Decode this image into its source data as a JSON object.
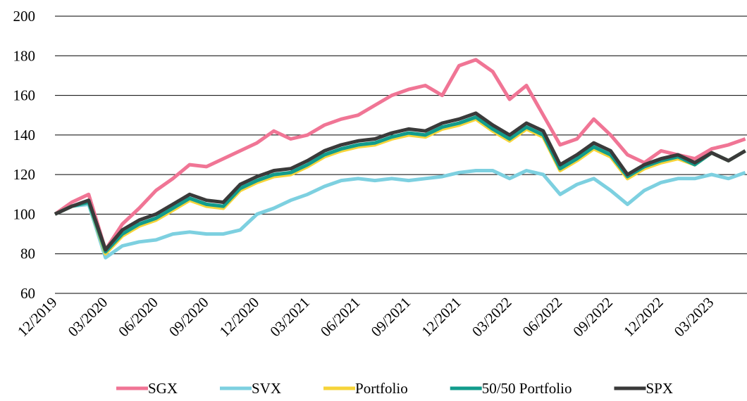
{
  "chart_data": {
    "type": "line",
    "x": [
      "12/2019",
      "01/2020",
      "02/2020",
      "03/2020",
      "04/2020",
      "05/2020",
      "06/2020",
      "07/2020",
      "08/2020",
      "09/2020",
      "10/2020",
      "11/2020",
      "12/2020",
      "01/2021",
      "02/2021",
      "03/2021",
      "04/2021",
      "05/2021",
      "06/2021",
      "07/2021",
      "08/2021",
      "09/2021",
      "10/2021",
      "11/2021",
      "12/2021",
      "01/2022",
      "02/2022",
      "03/2022",
      "04/2022",
      "05/2022",
      "06/2022",
      "07/2022",
      "08/2022",
      "09/2022",
      "10/2022",
      "11/2022",
      "12/2022",
      "01/2023",
      "02/2023",
      "03/2023",
      "04/2023",
      "05/2023"
    ],
    "xticks": [
      "12/2019",
      "03/2020",
      "06/2020",
      "09/2020",
      "12/2020",
      "03/2021",
      "06/2021",
      "09/2021",
      "12/2021",
      "03/2022",
      "06/2022",
      "09/2022",
      "12/2022",
      "03/2023"
    ],
    "ylim": [
      60,
      200
    ],
    "yticks": [
      60,
      80,
      100,
      120,
      140,
      160,
      180,
      200
    ],
    "grid": true,
    "legend": "bottom",
    "series": [
      {
        "name": "SGX",
        "color": "#f07595",
        "values": [
          100,
          106,
          110,
          82,
          95,
          103,
          112,
          118,
          125,
          124,
          128,
          132,
          136,
          142,
          138,
          140,
          145,
          148,
          150,
          155,
          160,
          163,
          165,
          160,
          175,
          178,
          172,
          158,
          165,
          150,
          135,
          138,
          148,
          140,
          130,
          126,
          132,
          130,
          128,
          133,
          135,
          138
        ]
      },
      {
        "name": "SVX",
        "color": "#7dd0e0",
        "values": [
          100,
          104,
          105,
          78,
          84,
          86,
          87,
          90,
          91,
          90,
          90,
          92,
          100,
          103,
          107,
          110,
          114,
          117,
          118,
          117,
          118,
          117,
          118,
          119,
          121,
          122,
          122,
          118,
          122,
          120,
          110,
          115,
          118,
          112,
          105,
          112,
          116,
          118,
          118,
          120,
          118,
          121
        ]
      },
      {
        "name": "Portfolio",
        "color": "#f6d43a",
        "values": [
          100,
          104,
          106,
          80,
          89,
          94,
          97,
          102,
          107,
          104,
          103,
          112,
          116,
          119,
          120,
          124,
          129,
          132,
          134,
          135,
          138,
          140,
          139,
          143,
          145,
          148,
          142,
          137,
          143,
          139,
          122,
          127,
          133,
          129,
          118,
          123,
          126,
          128,
          125,
          131,
          127,
          132
        ]
      },
      {
        "name": "50/50 Portfolio",
        "color": "#129c8c",
        "values": [
          100,
          104,
          106,
          81,
          90,
          95,
          98,
          103,
          108,
          105,
          104,
          113,
          117,
          120,
          121,
          125,
          130,
          133,
          135,
          136,
          139,
          141,
          140,
          144,
          146,
          149,
          143,
          138,
          144,
          140,
          123,
          128,
          134,
          130,
          119,
          124,
          127,
          129,
          125,
          131,
          127,
          132
        ]
      },
      {
        "name": "SPX",
        "color": "#3a3a3a",
        "values": [
          100,
          104,
          107,
          82,
          92,
          97,
          100,
          105,
          110,
          107,
          106,
          115,
          119,
          122,
          123,
          127,
          132,
          135,
          137,
          138,
          141,
          143,
          142,
          146,
          148,
          151,
          145,
          140,
          146,
          142,
          125,
          130,
          136,
          132,
          120,
          125,
          128,
          130,
          126,
          131,
          127,
          132
        ]
      }
    ]
  }
}
